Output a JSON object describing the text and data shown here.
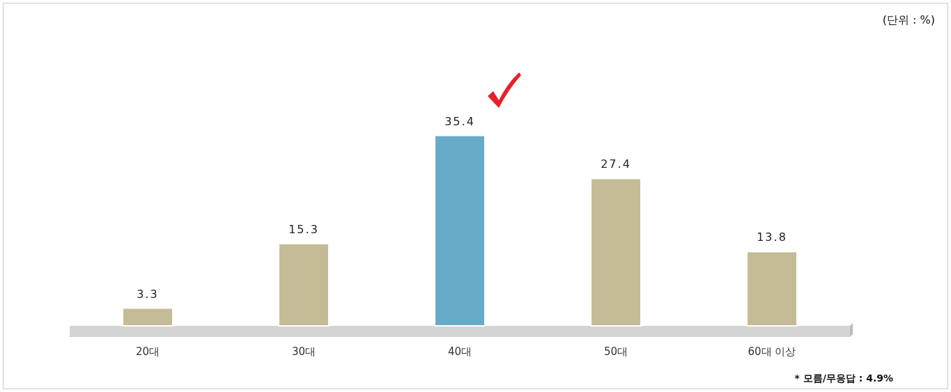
{
  "chart_data": {
    "type": "bar",
    "categories": [
      "20대",
      "30대",
      "40대",
      "50대",
      "60대 이상"
    ],
    "values": [
      3.3,
      15.3,
      35.4,
      27.4,
      13.8
    ],
    "colors": [
      "#c4bc97",
      "#c4bc97",
      "#67abc9",
      "#c4bc97",
      "#c4bc97"
    ],
    "data_labels": true,
    "annotations": [
      "(단위 : %)",
      "* 모름/무응답 : 4.9%"
    ]
  }
}
